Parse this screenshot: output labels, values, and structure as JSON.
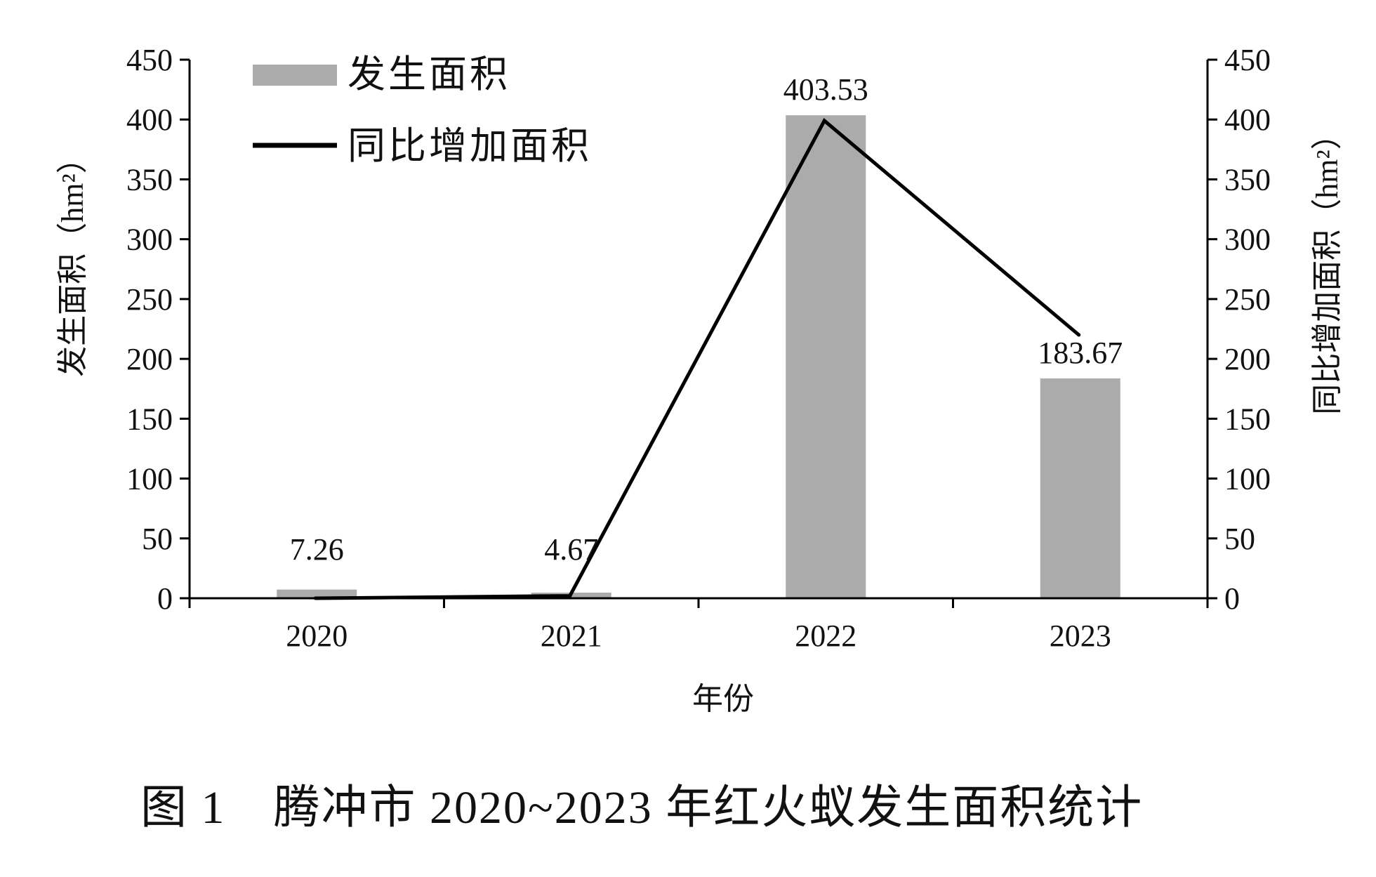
{
  "chart_data": {
    "type": "bar+line",
    "categories": [
      "2020",
      "2021",
      "2022",
      "2023"
    ],
    "series": [
      {
        "name": "发生面积",
        "type": "bar",
        "axis": "left",
        "values": [
          7.26,
          4.67,
          403.53,
          183.67
        ],
        "labels": [
          "7.26",
          "4.67",
          "403.53",
          "183.67"
        ]
      },
      {
        "name": "同比增加面积",
        "type": "line",
        "axis": "right",
        "values": [
          0,
          2,
          399,
          220
        ]
      }
    ],
    "xlabel": "年份",
    "ylabel_left": "发生面积（hm²）",
    "ylabel_right": "同比增加面积（hm²）",
    "ylim": [
      0,
      450
    ],
    "yticks": [
      "0",
      "50",
      "100",
      "150",
      "200",
      "250",
      "300",
      "350",
      "400",
      "450"
    ],
    "legend_position": "top-left",
    "grid": false,
    "bar_color": "#ababab",
    "line_color": "#000000"
  },
  "caption": "图 1　腾冲市 2020~2023 年红火蚁发生面积统计"
}
